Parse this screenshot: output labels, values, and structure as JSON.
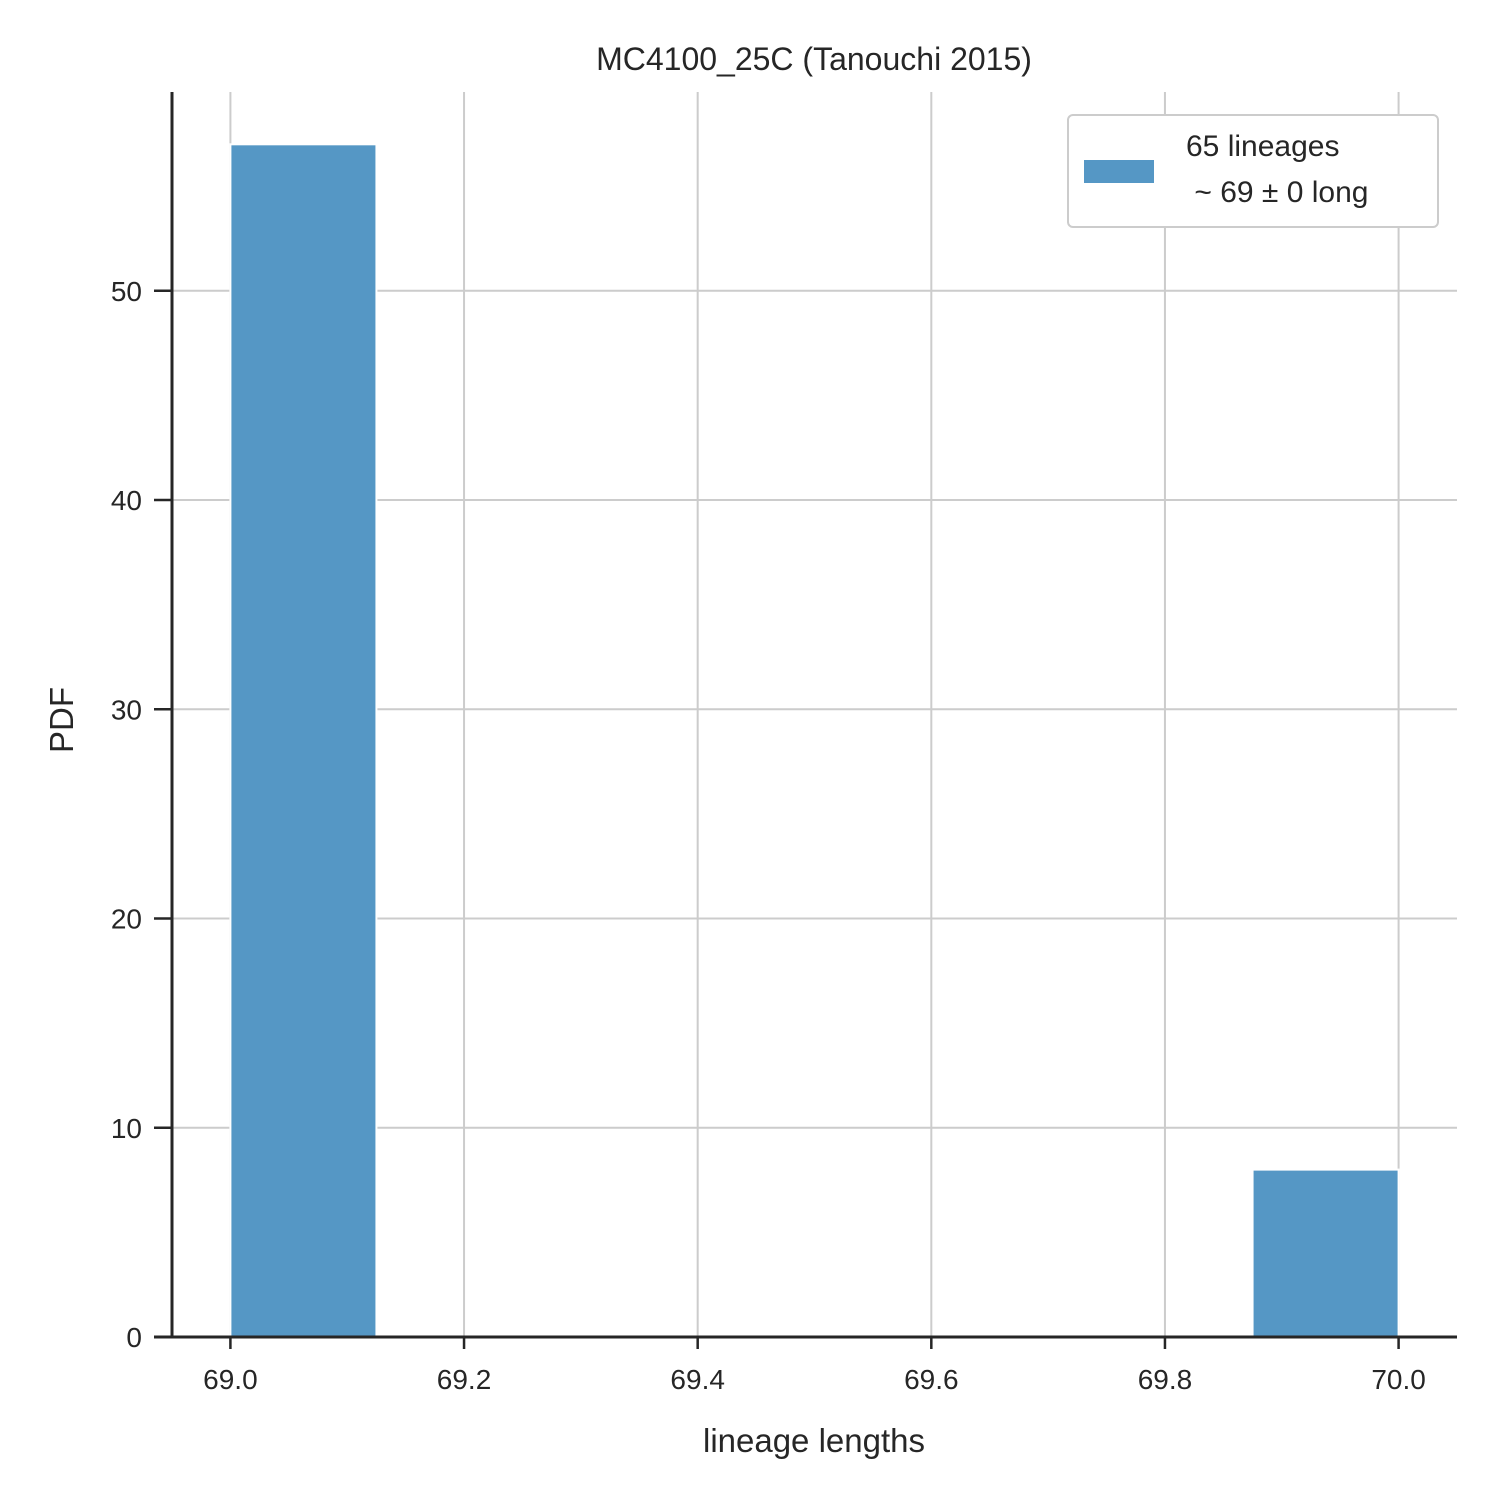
{
  "chart_data": {
    "type": "bar",
    "title": "MC4100_25C (Tanouchi 2015)",
    "xlabel": "lineage lengths",
    "ylabel": "PDF",
    "xlim": [
      68.95,
      70.05
    ],
    "ylim": [
      0,
      59.5
    ],
    "xticks": [
      69.0,
      69.2,
      69.4,
      69.6,
      69.8,
      70.0
    ],
    "xtick_labels": [
      "69.0",
      "69.2",
      "69.4",
      "69.6",
      "69.8",
      "70.0"
    ],
    "yticks": [
      0,
      10,
      20,
      30,
      40,
      50
    ],
    "ytick_labels": [
      "0",
      "10",
      "20",
      "30",
      "40",
      "50"
    ],
    "bins": [
      {
        "x0": 69.0,
        "x1": 69.125,
        "value": 57
      },
      {
        "x0": 69.875,
        "x1": 70.0,
        "value": 8
      }
    ],
    "series": [
      {
        "name": "65 lineages\n ~ 69 ± 0 long",
        "color": "#5597c5"
      }
    ],
    "legend": {
      "position": "top-right",
      "lines": [
        "65 lineages",
        " ~ 69 ± 0 long"
      ]
    },
    "grid": true,
    "colors": {
      "bar": "#5597c5",
      "grid": "#cccccc",
      "axis": "#262626"
    }
  }
}
